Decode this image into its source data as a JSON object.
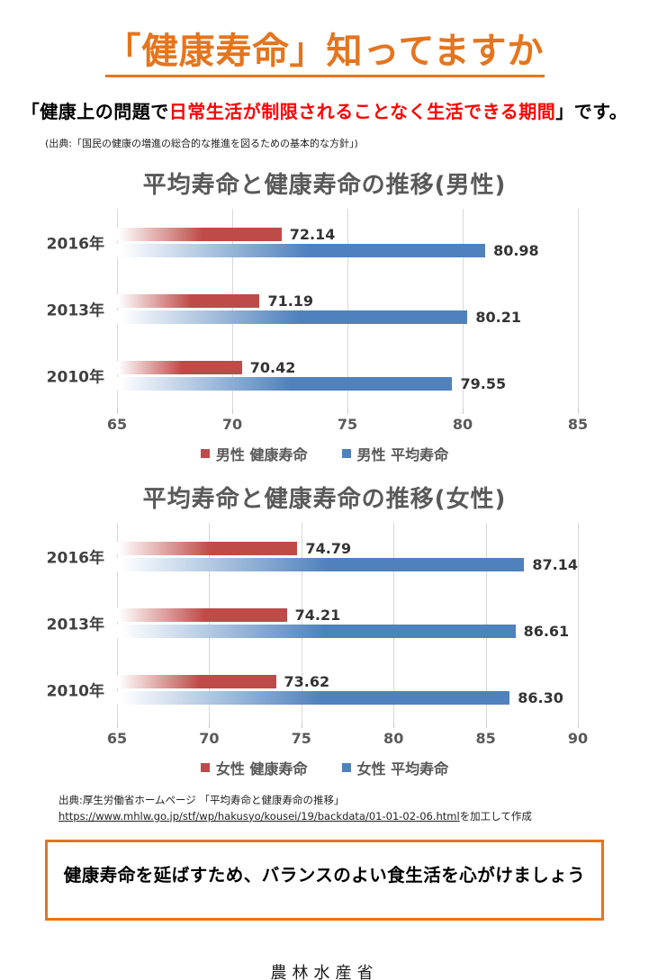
{
  "page": {
    "title": "「健康寿命」知ってますか",
    "subtitle": {
      "prefix": "「健康上の問題で",
      "highlight": "日常生活が制限されることなく生活できる期間",
      "suffix": "」です。"
    },
    "subtitle_source": "(出典:「国民の健康の増進の総合的な推進を図るための基本的な方針」)",
    "bottom_source": {
      "prefix": "出典:厚生労働省ホームページ 「平均寿命と健康寿命の推移」",
      "link": "https://www.mhlw.go.jp/stf/wp/hakusyo/kousei/19/backdata/01-01-02-06.html",
      "suffix": "を加工して作成"
    },
    "message_box": "健康寿命を延ばすため、バランスのよい食生活を心がけましょう",
    "footer": "農林水産省",
    "colors": {
      "accent_orange": "#E4751E",
      "highlight_red": "#FF0000",
      "bar_red": "#BE4B48",
      "bar_blue": "#4F81BD",
      "title_gray": "#595959"
    }
  },
  "chart_data": [
    {
      "type": "bar",
      "orientation": "horizontal",
      "title": "平均寿命と健康寿命の推移(男性)",
      "categories": [
        "2016年",
        "2013年",
        "2010年"
      ],
      "series": [
        {
          "name": "男性 健康寿命",
          "color": "#BE4B48",
          "values": [
            72.14,
            71.19,
            70.42
          ]
        },
        {
          "name": "男性 平均寿命",
          "color": "#4F81BD",
          "values": [
            80.98,
            80.21,
            79.55
          ]
        }
      ],
      "xlim": [
        65,
        85
      ],
      "xticks": [
        65,
        70,
        75,
        80,
        85
      ],
      "grid": true,
      "legend_position": "bottom"
    },
    {
      "type": "bar",
      "orientation": "horizontal",
      "title": "平均寿命と健康寿命の推移(女性)",
      "categories": [
        "2016年",
        "2013年",
        "2010年"
      ],
      "series": [
        {
          "name": "女性 健康寿命",
          "color": "#BE4B48",
          "values": [
            74.79,
            74.21,
            73.62
          ]
        },
        {
          "name": "女性 平均寿命",
          "color": "#4F81BD",
          "values": [
            87.14,
            86.61,
            86.3
          ]
        }
      ],
      "xlim": [
        65,
        90
      ],
      "xticks": [
        65,
        70,
        75,
        80,
        85,
        90
      ],
      "grid": true,
      "legend_position": "bottom"
    }
  ]
}
